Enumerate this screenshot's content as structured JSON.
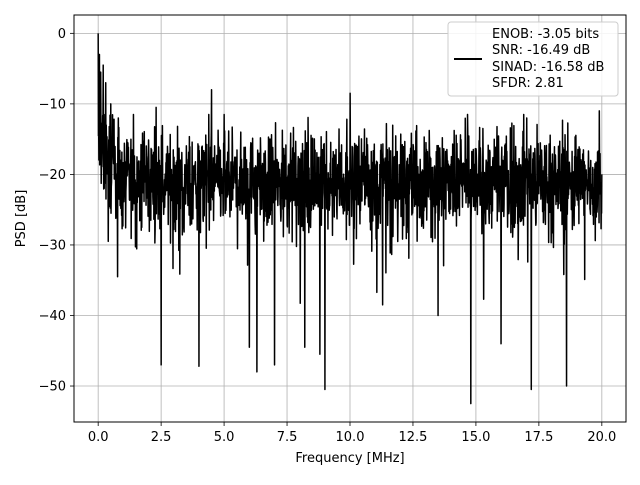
{
  "chart_data": {
    "type": "line",
    "title": "",
    "xlabel": "Frequency [MHz]",
    "ylabel": "PSD [dB]",
    "xlim": [
      -0.96,
      20.96
    ],
    "ylim": [
      -55.1,
      2.6
    ],
    "grid": true,
    "legend_position": "top-right",
    "x_ticks": [
      0.0,
      2.5,
      5.0,
      7.5,
      10.0,
      12.5,
      15.0,
      17.5,
      20.0
    ],
    "x_tick_labels": [
      "0.0",
      "2.5",
      "5.0",
      "7.5",
      "10.0",
      "12.5",
      "15.0",
      "17.5",
      "20.0"
    ],
    "y_ticks": [
      0,
      -10,
      -20,
      -30,
      -40,
      -50
    ],
    "y_tick_labels": [
      "0",
      "−10",
      "−20",
      "−30",
      "−40",
      "−50"
    ],
    "legend": {
      "lines": [
        "ENOB: -3.05 bits",
        "SNR: -16.49 dB",
        "SINAD: -16.58 dB",
        "SFDR: 2.81"
      ]
    },
    "series": [
      {
        "color": "#000000",
        "noise_floor": -21,
        "noise_spread": 4.2,
        "point_count": 2000,
        "x_range": [
          0,
          20
        ],
        "peaks": [
          {
            "x": 0.0,
            "y": 0.0
          },
          {
            "x": 0.05,
            "y": -3.0
          },
          {
            "x": 0.1,
            "y": -5.5
          },
          {
            "x": 0.2,
            "y": -4.5
          },
          {
            "x": 0.3,
            "y": -7.0
          },
          {
            "x": 0.5,
            "y": -10.0
          },
          {
            "x": 0.8,
            "y": -12.0
          },
          {
            "x": 1.4,
            "y": -11.5
          },
          {
            "x": 2.3,
            "y": -10.5
          },
          {
            "x": 4.5,
            "y": -8.0
          },
          {
            "x": 10.0,
            "y": -8.5
          },
          {
            "x": 16.9,
            "y": -11.5
          },
          {
            "x": 19.9,
            "y": -11.0
          }
        ],
        "dips": [
          {
            "x": 0.4,
            "y": -29.5
          },
          {
            "x": 2.5,
            "y": -47.0
          },
          {
            "x": 4.0,
            "y": -47.2
          },
          {
            "x": 6.0,
            "y": -44.5
          },
          {
            "x": 6.3,
            "y": -48.0
          },
          {
            "x": 7.0,
            "y": -47.0
          },
          {
            "x": 8.2,
            "y": -44.5
          },
          {
            "x": 8.8,
            "y": -45.5
          },
          {
            "x": 9.0,
            "y": -50.5
          },
          {
            "x": 14.8,
            "y": -52.5
          },
          {
            "x": 16.0,
            "y": -44.0
          },
          {
            "x": 17.2,
            "y": -50.5
          },
          {
            "x": 18.6,
            "y": -50.0
          },
          {
            "x": 13.5,
            "y": -40.0
          },
          {
            "x": 11.3,
            "y": -38.5
          }
        ]
      }
    ]
  }
}
